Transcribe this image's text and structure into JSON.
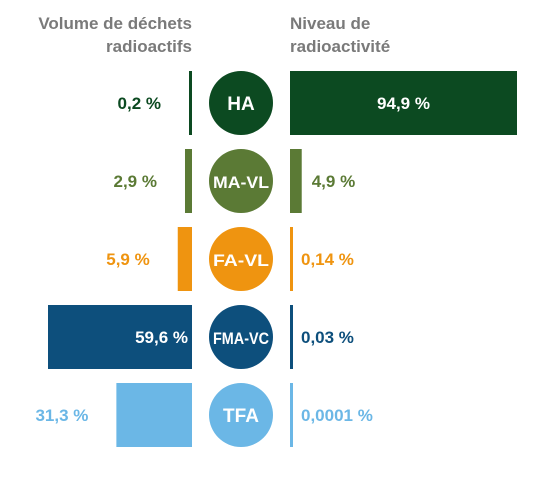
{
  "chart_data": {
    "type": "bar",
    "left_title": "Volume de déchets\nradioactifs",
    "right_title": "Niveau de\nradioactivité",
    "categories": [
      "HA",
      "MA-VL",
      "FA-VL",
      "FMA-VC",
      "TFA"
    ],
    "series": [
      {
        "name": "Volume de déchets radioactifs",
        "values": [
          0.2,
          2.9,
          5.9,
          59.6,
          31.3
        ],
        "labels": [
          "0,2 %",
          "2,9 %",
          "5,9 %",
          "59,6 %",
          "31,3 %"
        ]
      },
      {
        "name": "Niveau de radioactivité",
        "values": [
          94.9,
          4.9,
          0.14,
          0.03,
          0.0001
        ],
        "labels": [
          "94,9 %",
          "4,9 %",
          "0,14 %",
          "0,03 %",
          "0,0001 %"
        ]
      }
    ],
    "colors": [
      "#0c4a21",
      "#5b7a35",
      "#ef9410",
      "#0d4f7c",
      "#6bb7e6"
    ],
    "unit": "%"
  }
}
